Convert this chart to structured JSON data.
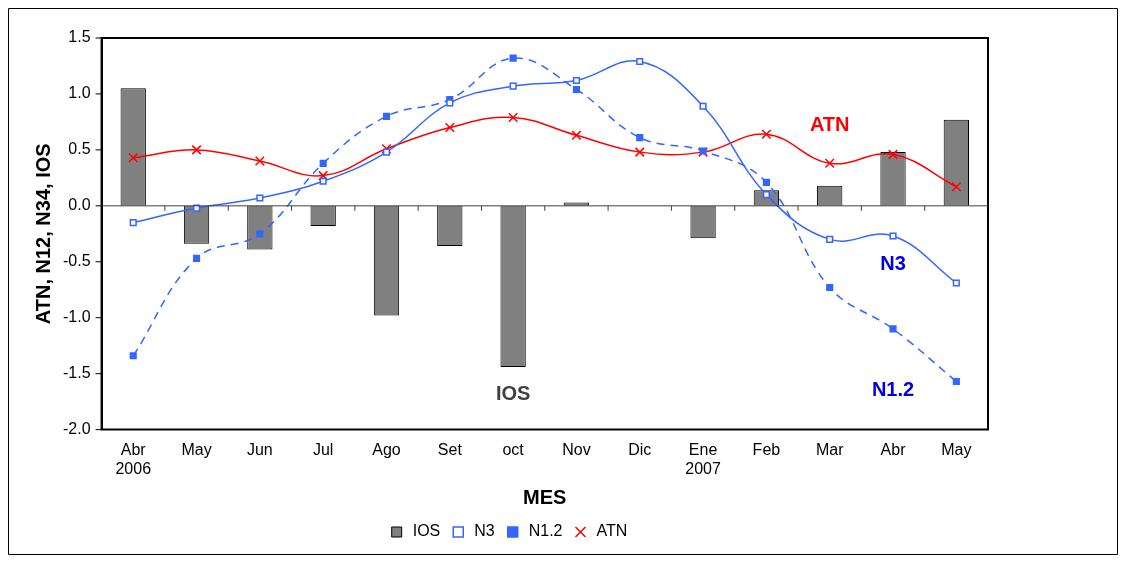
{
  "chart_data": {
    "type": "bar",
    "xlabel": "MES",
    "ylabel": "ATN, N12, N34, IOS",
    "categories": [
      "Abr 2006",
      "May",
      "Jun",
      "Jul",
      "Ago",
      "Set",
      "oct",
      "Nov",
      "Dic",
      "Ene 2007",
      "Feb",
      "Mar",
      "Abr",
      "May"
    ],
    "series": [
      {
        "name": "IOS",
        "color": "#808080",
        "values": [
          1.05,
          -0.34,
          -0.39,
          -0.18,
          -0.98,
          -0.36,
          -1.44,
          0.03,
          null,
          -0.29,
          0.14,
          0.18,
          0.48,
          0.77
        ]
      },
      {
        "name": "N3",
        "type": "line",
        "color": "#3366ff",
        "marker": "square",
        "line_style": "solid",
        "values": [
          -0.15,
          -0.02,
          0.07,
          0.22,
          0.48,
          0.92,
          1.07,
          1.12,
          1.29,
          0.89,
          0.1,
          -0.3,
          -0.27,
          -0.69
        ]
      },
      {
        "name": "N1.2",
        "type": "line",
        "color": "#3366ff",
        "marker": "square",
        "line_style": "dashed",
        "values": [
          -1.34,
          -0.47,
          -0.25,
          0.38,
          0.8,
          0.95,
          1.32,
          1.04,
          0.61,
          0.49,
          0.21,
          -0.73,
          -1.1,
          -1.57
        ]
      },
      {
        "name": "ATN",
        "type": "line",
        "color": "#ff0000",
        "marker": "cross",
        "line_style": "solid",
        "values": [
          0.43,
          0.5,
          0.4,
          0.27,
          0.51,
          0.7,
          0.79,
          0.63,
          0.48,
          0.48,
          0.64,
          0.38,
          0.46,
          0.17
        ]
      }
    ],
    "ylim": [
      -2,
      1.5
    ],
    "yticks": [
      {
        "value": -2,
        "label": "-2.0"
      },
      -1.5,
      {
        "value": -1,
        "label": "-1.0"
      },
      -0.5,
      {
        "value": 0,
        "label": "0.0"
      },
      0.5,
      {
        "value": 1,
        "label": "1.0"
      },
      1.5
    ],
    "ref_lines": [
      {
        "axis": "y",
        "value": 0,
        "color": "#404040"
      }
    ],
    "grid": false,
    "legend": "bottom"
  }
}
